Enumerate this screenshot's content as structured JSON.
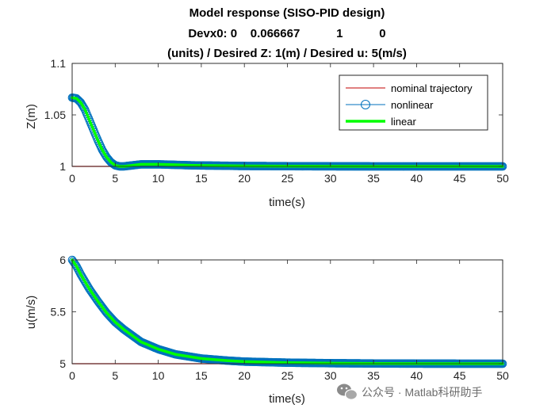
{
  "chart_data": [
    {
      "type": "line",
      "title_lines": [
        "Model response (SISO-PID design)",
        "Devx0: 0    0.066667           1           0",
        "(units) / Desired Z: 1(m) / Desired u: 5(m/s)"
      ],
      "xlabel": "time(s)",
      "ylabel": "Z(m)",
      "xlim": [
        0,
        50
      ],
      "ylim": [
        1,
        1.1
      ],
      "xticks": [
        0,
        5,
        10,
        15,
        20,
        25,
        30,
        35,
        40,
        45,
        50
      ],
      "yticks": [
        1,
        1.05,
        1.1
      ],
      "ytick_labels": [
        "1",
        "1.05",
        "1.1"
      ],
      "legend_position": "top-right",
      "series": [
        {
          "name": "nominal trajectory",
          "color": "#c00000",
          "style": "line",
          "x": [
            0,
            50
          ],
          "y": [
            1,
            1
          ]
        },
        {
          "name": "nonlinear",
          "color": "#0072bd",
          "style": "circle-marker",
          "x": [
            0,
            0.5,
            1,
            1.5,
            2,
            2.5,
            3,
            3.5,
            4,
            4.5,
            5,
            5.5,
            6,
            7,
            8,
            9,
            10,
            12,
            14,
            16,
            20,
            25,
            30,
            35,
            40,
            45,
            50
          ],
          "y": [
            1.0667,
            1.066,
            1.062,
            1.055,
            1.045,
            1.035,
            1.025,
            1.016,
            1.009,
            1.004,
            1.001,
            1.0,
            1.0,
            1.001,
            1.002,
            1.002,
            1.002,
            1.0015,
            1.001,
            1.0008,
            1.0004,
            1.0002,
            1.0001,
            1.0,
            1.0,
            1.0,
            1.0
          ]
        },
        {
          "name": "linear",
          "color": "#00ff00",
          "style": "thick-line",
          "x": [
            0,
            0.5,
            1,
            1.5,
            2,
            2.5,
            3,
            3.5,
            4,
            4.5,
            5,
            5.5,
            6,
            7,
            8,
            9,
            10,
            12,
            14,
            16,
            20,
            25,
            30,
            35,
            40,
            45,
            50
          ],
          "y": [
            1.0667,
            1.066,
            1.062,
            1.055,
            1.045,
            1.035,
            1.025,
            1.016,
            1.009,
            1.004,
            1.001,
            1.0,
            1.0,
            1.001,
            1.002,
            1.002,
            1.002,
            1.0015,
            1.001,
            1.0008,
            1.0004,
            1.0002,
            1.0001,
            1.0,
            1.0,
            1.0,
            1.0
          ]
        }
      ]
    },
    {
      "type": "line",
      "xlabel": "time(s)",
      "ylabel": "u(m/s)",
      "xlim": [
        0,
        50
      ],
      "ylim": [
        5,
        6
      ],
      "xticks": [
        0,
        5,
        10,
        15,
        20,
        25,
        30,
        35,
        40,
        45,
        50
      ],
      "yticks": [
        5,
        5.5,
        6
      ],
      "ytick_labels": [
        "5",
        "5.5",
        "6"
      ],
      "series": [
        {
          "name": "nominal trajectory",
          "color": "#c00000",
          "style": "line",
          "x": [
            0,
            50
          ],
          "y": [
            5,
            5
          ]
        },
        {
          "name": "nonlinear",
          "color": "#0072bd",
          "style": "circle-marker",
          "x": [
            0,
            0.5,
            1,
            1.5,
            2,
            3,
            4,
            5,
            6,
            8,
            10,
            12,
            15,
            18,
            20,
            25,
            30,
            35,
            40,
            45,
            50
          ],
          "y": [
            6.0,
            5.94,
            5.86,
            5.79,
            5.72,
            5.6,
            5.49,
            5.4,
            5.33,
            5.21,
            5.14,
            5.09,
            5.05,
            5.03,
            5.02,
            5.01,
            5.005,
            5.002,
            5.001,
            5.0,
            5.0
          ]
        },
        {
          "name": "linear",
          "color": "#00ff00",
          "style": "thick-line",
          "x": [
            0,
            0.5,
            1,
            1.5,
            2,
            3,
            4,
            5,
            6,
            8,
            10,
            12,
            15,
            18,
            20,
            25,
            30,
            35,
            40,
            45,
            50
          ],
          "y": [
            6.0,
            5.94,
            5.86,
            5.79,
            5.72,
            5.6,
            5.49,
            5.4,
            5.33,
            5.21,
            5.14,
            5.09,
            5.05,
            5.03,
            5.02,
            5.01,
            5.005,
            5.002,
            5.001,
            5.0,
            5.0
          ]
        }
      ]
    }
  ],
  "watermark": {
    "text": "公众号 · Matlab科研助手",
    "icon": "wechat-icon"
  }
}
